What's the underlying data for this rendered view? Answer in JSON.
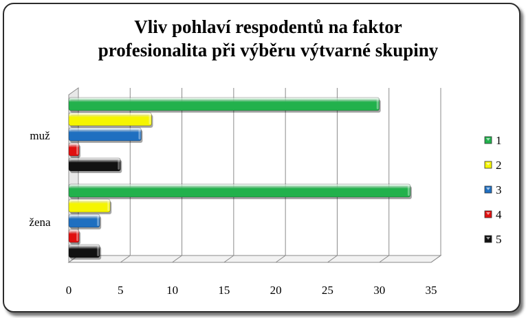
{
  "chart_data": {
    "type": "bar",
    "orientation": "horizontal",
    "title": "Vliv pohlaví respodentů na faktor profesionalita při výběru výtvarné skupiny",
    "title_lines": [
      "Vliv pohlaví respodentů na faktor",
      "profesionalita při výběru výtvarné skupiny"
    ],
    "categories": [
      "muž",
      "žena"
    ],
    "series": [
      {
        "name": "1",
        "values": [
          30,
          33
        ],
        "color": "#22b14c"
      },
      {
        "name": "2",
        "values": [
          8,
          4
        ],
        "color": "#f5f500"
      },
      {
        "name": "3",
        "values": [
          7,
          3
        ],
        "color": "#1f6fc0"
      },
      {
        "name": "4",
        "values": [
          1,
          1
        ],
        "color": "#e01010"
      },
      {
        "name": "5",
        "values": [
          5,
          3
        ],
        "color": "#111111"
      }
    ],
    "xlim": [
      0,
      35
    ],
    "xticks": [
      0,
      5,
      10,
      15,
      20,
      25,
      30,
      35
    ],
    "grid": true,
    "legend": "right",
    "xlabel": "",
    "ylabel": ""
  }
}
